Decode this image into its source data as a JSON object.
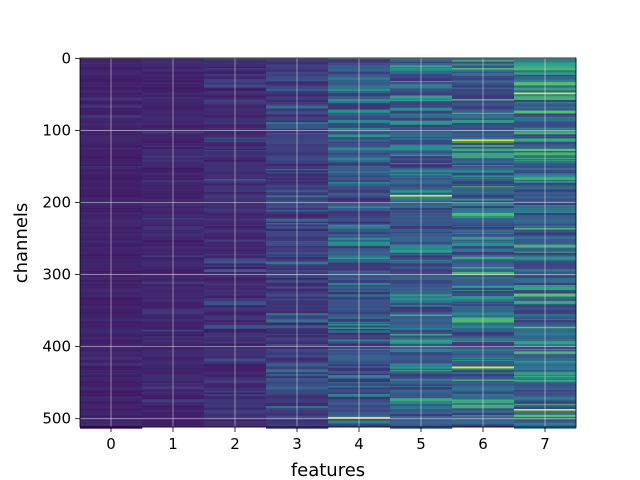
{
  "chart_data": {
    "type": "heatmap",
    "title": "",
    "xlabel": "features",
    "ylabel": "channels",
    "x_ticks": [
      "0",
      "1",
      "2",
      "3",
      "4",
      "5",
      "6",
      "7"
    ],
    "y_ticks": [
      "0",
      "100",
      "200",
      "300",
      "400",
      "500"
    ],
    "y_tick_values": [
      0,
      100,
      200,
      300,
      400,
      500
    ],
    "rows": 512,
    "columns": 8,
    "xlim": [
      -0.5,
      7.5
    ],
    "ylim": [
      -0.5,
      511.5
    ],
    "y_inverted": true,
    "grid": true,
    "colormap": "viridis",
    "column_mean_intensity": [
      0.1,
      0.11,
      0.13,
      0.18,
      0.23,
      0.27,
      0.29,
      0.31
    ],
    "column_spread": [
      0.05,
      0.06,
      0.09,
      0.13,
      0.18,
      0.22,
      0.24,
      0.26
    ],
    "highlight_rows": {
      "0": [],
      "1": [],
      "2": [],
      "3": [],
      "4": [
        498
      ],
      "5": [
        190
      ],
      "6": [
        113,
        428
      ],
      "7": [
        48,
        487
      ]
    },
    "colors": {
      "low": "#40327c",
      "mid": "#2d8c8c",
      "high": "#e9e51f"
    }
  }
}
